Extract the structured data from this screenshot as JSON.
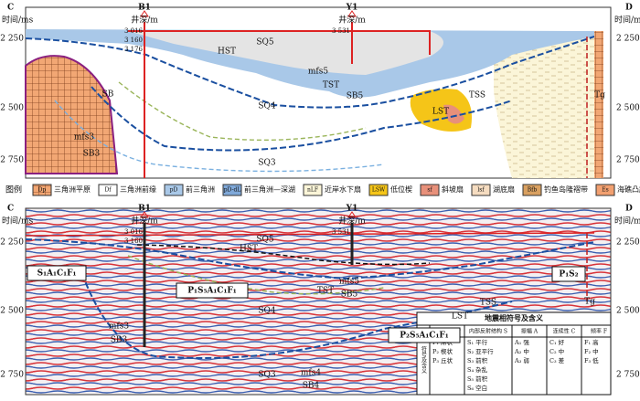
{
  "top_panel": {
    "left_label": "C",
    "right_label": "D",
    "axis_title": "时间/ms",
    "time_ticks": [
      "2 250",
      "2 500",
      "2 750"
    ],
    "wells": [
      {
        "name": "B1",
        "depth_title": "井深/m",
        "depths": [
          "3 016",
          "3 160",
          "3 176"
        ]
      },
      {
        "name": "Y1",
        "depth_title": "井深/m",
        "depths": [
          "3 531"
        ]
      }
    ],
    "annotations": [
      "SQ5",
      "HST",
      "mfs5",
      "TST",
      "SB5",
      "SQ4",
      "TSS",
      "LST",
      "Tg",
      "mfs3",
      "SB3",
      "SQ3",
      "SB"
    ]
  },
  "legend": {
    "title": "图例",
    "items": [
      {
        "code": "Dp",
        "label": "三角洲平原"
      },
      {
        "code": "Df",
        "label": "三角洲前缘"
      },
      {
        "code": "pD",
        "label": "前三角洲"
      },
      {
        "code": "pD-dL",
        "label": "前三角洲—深湖"
      },
      {
        "code": "nLF",
        "label": "近岸水下扇"
      },
      {
        "code": "LSW",
        "label": "低位楔"
      },
      {
        "code": "sf",
        "label": "斜坡扇"
      },
      {
        "code": "lsf",
        "label": "湖底扇"
      },
      {
        "code": "Bfb",
        "label": "钓鱼岛隆褶带"
      },
      {
        "code": "Es",
        "label": "海礁凸起"
      }
    ]
  },
  "bottom_panel": {
    "left_label": "C",
    "right_label": "D",
    "axis_title": "时间/ms",
    "time_ticks": [
      "2 250",
      "2 500",
      "2 750"
    ],
    "wells": [
      {
        "name": "B1",
        "depth_title": "井深/m",
        "depths": [
          "3 016",
          "3 160"
        ]
      },
      {
        "name": "Y1",
        "depth_title": "井深/m",
        "depths": [
          "3 531"
        ]
      }
    ],
    "annotations": [
      "SQ5",
      "HST",
      "mfs5",
      "TST",
      "SB5",
      "SQ4",
      "TSS",
      "LST",
      "Tg",
      "mfs3",
      "SB3",
      "SQ3",
      "mfs4",
      "SB4"
    ],
    "facies_boxes": [
      "S₁A₁C₁F₁",
      "P₁S₅A₁C₁F₁",
      "P₂S₅A₁C₁F₁",
      "P₁S₂"
    ]
  },
  "table": {
    "title": "地震相符号及含义",
    "row_header": "符号及含义",
    "columns": [
      {
        "header": "反射外形 P",
        "entries": [
          "P₁ 席状",
          "P₂ 楔状",
          "P₃ 丘状"
        ]
      },
      {
        "header": "内部反射结构 S",
        "entries": [
          "S₁ 平行",
          "S₂ 亚平行",
          "S₃ 前积",
          "S₄ 杂乱",
          "S₅ 前积",
          "S₆ 空白"
        ]
      },
      {
        "header": "振幅 A",
        "entries": [
          "A₁ 强",
          "A₂ 中",
          "A₃ 弱"
        ]
      },
      {
        "header": "连续性 C",
        "entries": [
          "C₁ 好",
          "C₂ 中",
          "C₃ 差"
        ]
      },
      {
        "header": "频率 F",
        "entries": [
          "F₁ 高",
          "F₂ 中",
          "F₃ 低"
        ]
      }
    ]
  }
}
